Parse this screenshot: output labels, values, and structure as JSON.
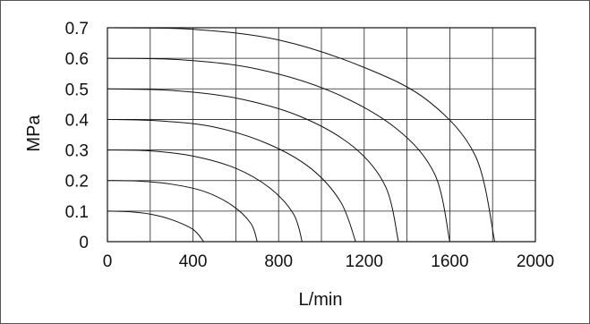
{
  "chart_data": {
    "type": "line",
    "title": "",
    "xlabel": "L/min",
    "ylabel": "MPa",
    "xlim": [
      0,
      2000
    ],
    "ylim": [
      0,
      0.7
    ],
    "x_ticks": [
      "0",
      "400",
      "800",
      "1200",
      "1600",
      "2000"
    ],
    "y_ticks": [
      "0",
      "0.1",
      "0.2",
      "0.3",
      "0.4",
      "0.5",
      "0.6",
      "0.7"
    ],
    "grid": true,
    "legend": "none",
    "series": [
      {
        "points": [
          [
            0,
            0.1
          ],
          [
            100,
            0.098
          ],
          [
            200,
            0.09
          ],
          [
            300,
            0.072
          ],
          [
            400,
            0.04
          ],
          [
            450,
            0.0
          ]
        ]
      },
      {
        "points": [
          [
            0,
            0.2
          ],
          [
            150,
            0.198
          ],
          [
            300,
            0.188
          ],
          [
            450,
            0.165
          ],
          [
            580,
            0.12
          ],
          [
            670,
            0.06
          ],
          [
            700,
            0.0
          ]
        ]
      },
      {
        "points": [
          [
            0,
            0.3
          ],
          [
            200,
            0.297
          ],
          [
            400,
            0.28
          ],
          [
            600,
            0.24
          ],
          [
            760,
            0.175
          ],
          [
            870,
            0.09
          ],
          [
            910,
            0.0
          ]
        ]
      },
      {
        "points": [
          [
            0,
            0.4
          ],
          [
            250,
            0.395
          ],
          [
            500,
            0.375
          ],
          [
            750,
            0.32
          ],
          [
            950,
            0.24
          ],
          [
            1090,
            0.13
          ],
          [
            1160,
            0.0
          ]
        ]
      },
      {
        "points": [
          [
            0,
            0.5
          ],
          [
            300,
            0.495
          ],
          [
            600,
            0.47
          ],
          [
            900,
            0.41
          ],
          [
            1150,
            0.31
          ],
          [
            1300,
            0.18
          ],
          [
            1360,
            0.0
          ]
        ]
      },
      {
        "points": [
          [
            0,
            0.6
          ],
          [
            350,
            0.595
          ],
          [
            700,
            0.565
          ],
          [
            1050,
            0.49
          ],
          [
            1350,
            0.37
          ],
          [
            1530,
            0.22
          ],
          [
            1600,
            0.0
          ]
        ]
      },
      {
        "points": [
          [
            0,
            0.7
          ],
          [
            400,
            0.695
          ],
          [
            800,
            0.66
          ],
          [
            1200,
            0.57
          ],
          [
            1500,
            0.46
          ],
          [
            1720,
            0.28
          ],
          [
            1810,
            0.0
          ]
        ]
      }
    ]
  }
}
